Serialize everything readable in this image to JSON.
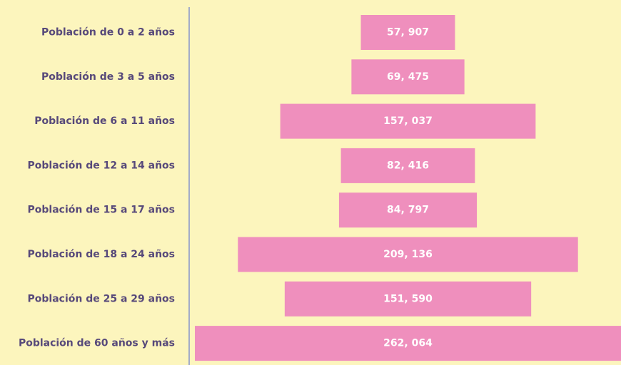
{
  "chart_data": {
    "type": "funnel",
    "categories": [
      "Población de 0 a 2 años",
      "Población de 3 a 5 años",
      "Población de 6 a 11 años",
      "Población de 12 a 14 años",
      "Población de 15 a 17 años",
      "Población de 18 a 24 años",
      "Población de 25 a 29 años",
      "Población de 60 años y más"
    ],
    "values": [
      57907,
      69475,
      157037,
      82416,
      84797,
      209136,
      151590,
      262064
    ],
    "value_labels": [
      "57, 907",
      "69, 475",
      "157, 037",
      "82, 416",
      "84, 797",
      "209, 136",
      "151, 590",
      "262, 064"
    ],
    "color": "#ef8fbd"
  }
}
